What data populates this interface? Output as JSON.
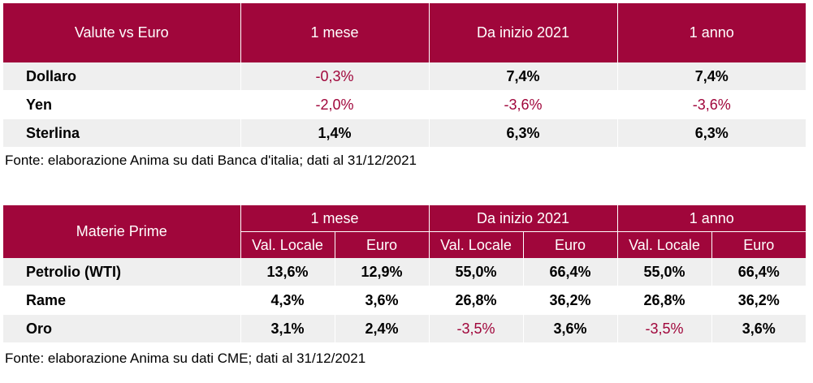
{
  "currency_table": {
    "headers": [
      "Valute vs Euro",
      "1 mese",
      "Da inizio 2021",
      "1 anno"
    ],
    "rows": [
      {
        "name": "Dollaro",
        "values": [
          "-0,3%",
          "7,4%",
          "7,4%"
        ],
        "negative": [
          true,
          false,
          false
        ]
      },
      {
        "name": "Yen",
        "values": [
          "-2,0%",
          "-3,6%",
          "-3,6%"
        ],
        "negative": [
          true,
          true,
          true
        ]
      },
      {
        "name": "Sterlina",
        "values": [
          "1,4%",
          "6,3%",
          "6,3%"
        ],
        "negative": [
          false,
          false,
          false
        ]
      }
    ],
    "source": "Fonte: elaborazione Anima su dati Banca d'italia; dati al 31/12/2021"
  },
  "commodity_table": {
    "header_main": "Materie Prime",
    "groups": [
      "1 mese",
      "Da inizio 2021",
      "1 anno"
    ],
    "subheaders": [
      "Val. Locale",
      "Euro",
      "Val. Locale",
      "Euro",
      "Val. Locale",
      "Euro"
    ],
    "rows": [
      {
        "name": "Petrolio (WTI)",
        "values": [
          "13,6%",
          "12,9%",
          "55,0%",
          "66,4%",
          "55,0%",
          "66,4%"
        ],
        "negative": [
          false,
          false,
          false,
          false,
          false,
          false
        ]
      },
      {
        "name": "Rame",
        "values": [
          "4,3%",
          "3,6%",
          "26,8%",
          "36,2%",
          "26,8%",
          "36,2%"
        ],
        "negative": [
          false,
          false,
          false,
          false,
          false,
          false
        ]
      },
      {
        "name": "Oro",
        "values": [
          "3,1%",
          "2,4%",
          "-3,5%",
          "3,6%",
          "-3,5%",
          "3,6%"
        ],
        "negative": [
          false,
          false,
          true,
          false,
          true,
          false
        ]
      }
    ],
    "source": "Fonte: elaborazione Anima su dati CME; dati al 31/12/2021"
  },
  "colors": {
    "header_bg": "#a0063b",
    "negative_text": "#a0063b",
    "row_stripe": "#efefef"
  }
}
